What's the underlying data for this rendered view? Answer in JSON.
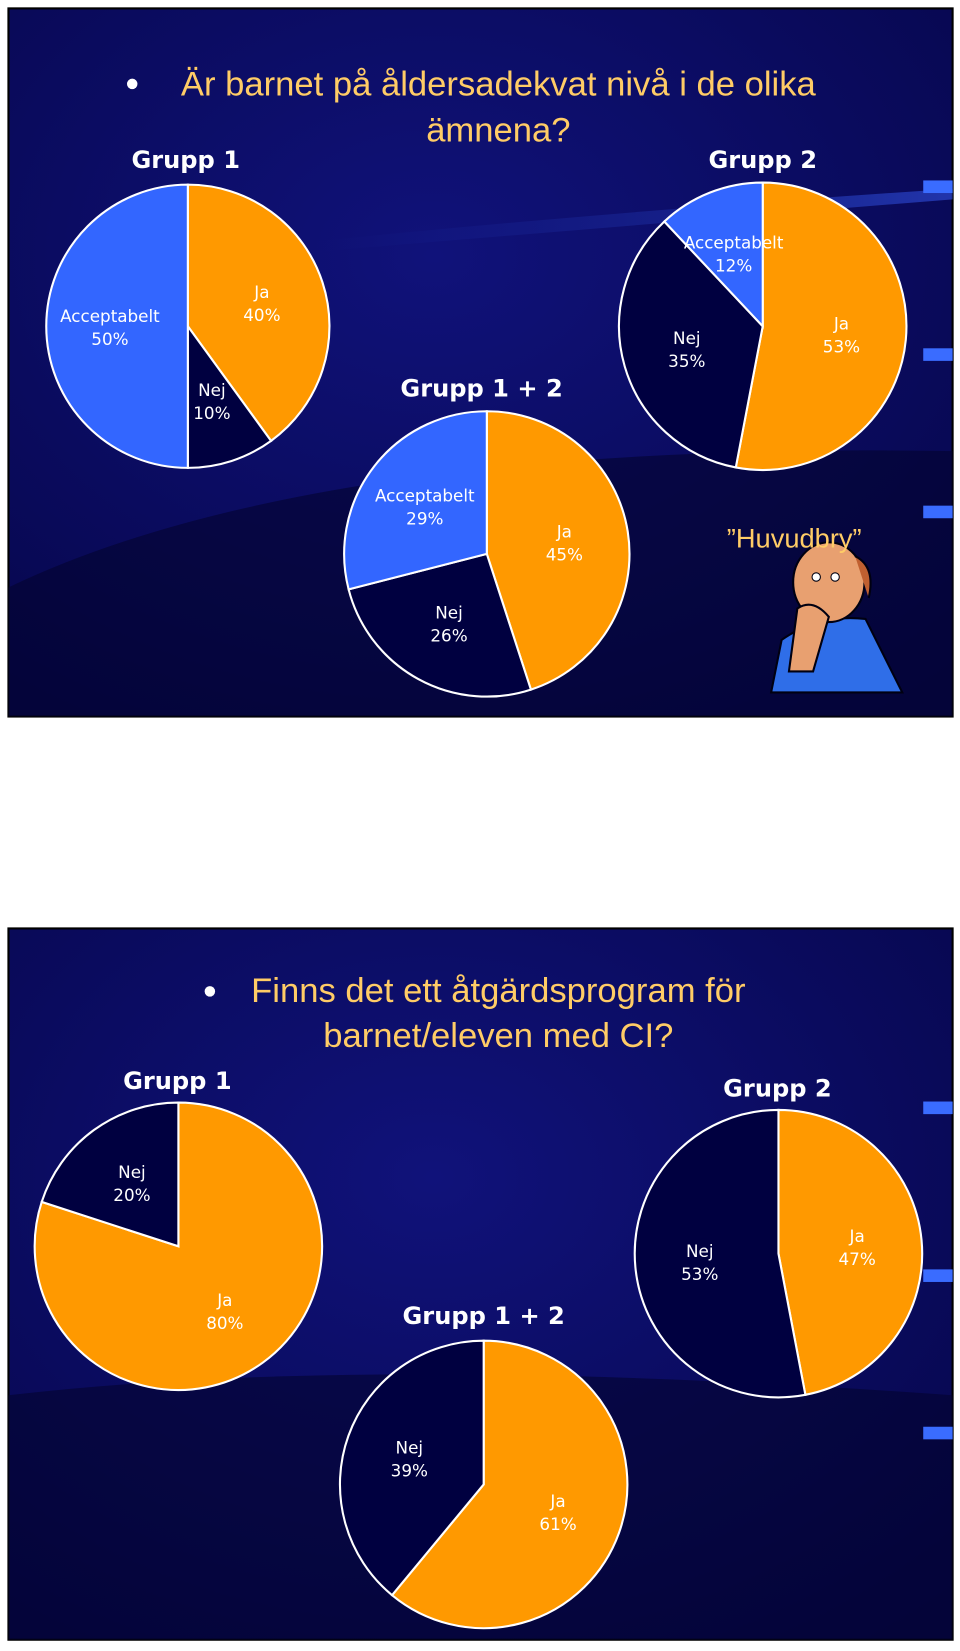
{
  "slides": [
    {
      "title_lines": [
        "Är barnet på åldersadekvat nivå i de olika",
        "ämnena?"
      ],
      "caption": "”Huvudbry”",
      "charts": [
        {
          "type": "pie",
          "title": "Grupp 1",
          "categories": [
            "Ja",
            "Nej",
            "Acceptabelt"
          ],
          "values": [
            40,
            10,
            50
          ],
          "value_labels": [
            "40%",
            "10%",
            "50%"
          ],
          "colors": [
            "#ff9900",
            "#000040",
            "#3366ff"
          ]
        },
        {
          "type": "pie",
          "title": "Grupp 2",
          "categories": [
            "Ja",
            "Nej",
            "Acceptabelt"
          ],
          "values": [
            53,
            35,
            12
          ],
          "value_labels": [
            "53%",
            "35%",
            "12%"
          ],
          "colors": [
            "#ff9900",
            "#000040",
            "#3366ff"
          ]
        },
        {
          "type": "pie",
          "title": "Grupp 1 + 2",
          "categories": [
            "Ja",
            "Nej",
            "Acceptabelt"
          ],
          "values": [
            45,
            26,
            29
          ],
          "value_labels": [
            "45%",
            "26%",
            "29%"
          ],
          "colors": [
            "#ff9900",
            "#000040",
            "#3366ff"
          ]
        }
      ]
    },
    {
      "title_lines": [
        "Finns det ett åtgärdsprogram för",
        "barnet/eleven med CI?"
      ],
      "charts": [
        {
          "type": "pie",
          "title": "Grupp 1",
          "categories": [
            "Ja",
            "Nej"
          ],
          "values": [
            80,
            20
          ],
          "value_labels": [
            "80%",
            "20%"
          ],
          "colors": [
            "#ff9900",
            "#000040"
          ]
        },
        {
          "type": "pie",
          "title": "Grupp 2",
          "categories": [
            "Ja",
            "Nej"
          ],
          "values": [
            47,
            53
          ],
          "value_labels": [
            "47%",
            "53%"
          ],
          "colors": [
            "#ff9900",
            "#000040"
          ]
        },
        {
          "type": "pie",
          "title": "Grupp 1 + 2",
          "categories": [
            "Ja",
            "Nej"
          ],
          "values": [
            61,
            39
          ],
          "value_labels": [
            "61%",
            "39%"
          ],
          "colors": [
            "#ff9900",
            "#000040"
          ]
        }
      ]
    }
  ]
}
